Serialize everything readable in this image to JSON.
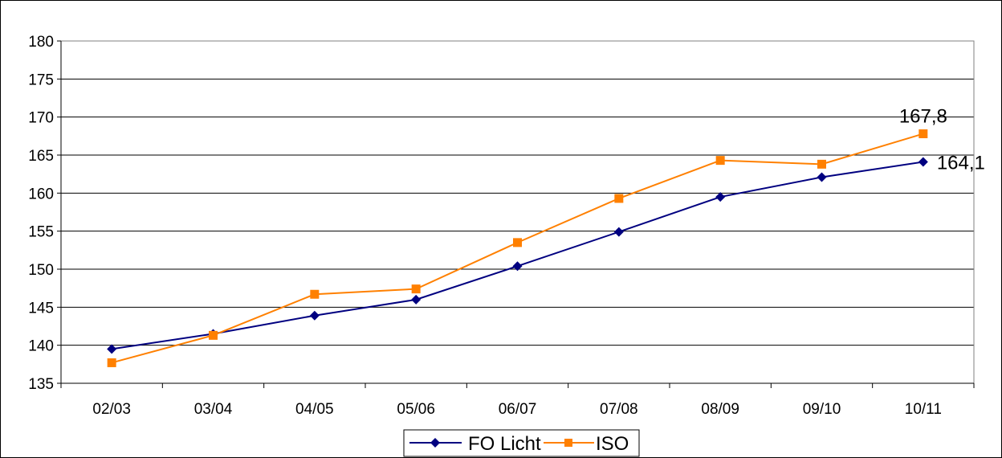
{
  "chart_data": {
    "type": "line",
    "title": "",
    "xlabel": "",
    "ylabel": "",
    "categories": [
      "02/03",
      "03/04",
      "04/05",
      "05/06",
      "06/07",
      "07/08",
      "08/09",
      "09/10",
      "10/11"
    ],
    "ylim": [
      135,
      180
    ],
    "yticks": [
      "135",
      "140",
      "145",
      "150",
      "155",
      "160",
      "165",
      "170",
      "175",
      "180"
    ],
    "grid": true,
    "legend_position": "bottom",
    "series": [
      {
        "name": "FO Licht",
        "color": "#000080",
        "marker": "diamond",
        "values": [
          139.5,
          141.5,
          143.9,
          146.0,
          150.4,
          154.9,
          159.5,
          162.1,
          164.1
        ]
      },
      {
        "name": "ISO",
        "color": "#FF8000",
        "marker": "square",
        "values": [
          137.7,
          141.3,
          146.7,
          147.4,
          153.5,
          159.3,
          164.3,
          163.8,
          167.8
        ]
      }
    ],
    "annotations": [
      {
        "series": "ISO",
        "category": "10/11",
        "text": "167,8"
      },
      {
        "series": "FO Licht",
        "category": "10/11",
        "text": "164,1"
      }
    ]
  }
}
